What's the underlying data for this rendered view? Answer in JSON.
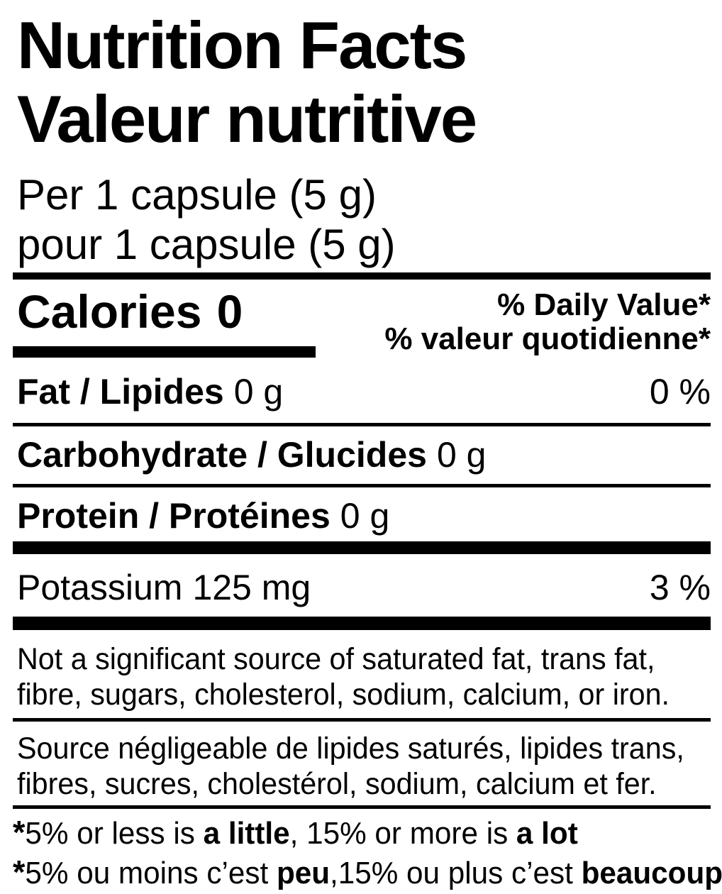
{
  "colors": {
    "text": "#000000",
    "background": "#ffffff",
    "rule": "#000000"
  },
  "label": {
    "title_en": "Nutrition Facts",
    "title_fr": "Valeur nutritive",
    "serving_en": "Per 1 capsule (5 g)",
    "serving_fr": "pour 1 capsule (5 g)",
    "calories": {
      "label": "Calories",
      "value": "0"
    },
    "daily_value_header": {
      "en": "% Daily Value*",
      "fr": "% valeur quotidienne*"
    },
    "nutrients": [
      {
        "name": "Fat / Lipides",
        "amount": "0 g",
        "daily_value": "0 %"
      },
      {
        "name": "Carbohydrate / Glucides",
        "amount": "0 g"
      },
      {
        "name": "Protein / Protéines",
        "amount": "0 g"
      },
      {
        "name": "Potassium",
        "amount": "125 mg",
        "daily_value": "3 %"
      }
    ],
    "not_significant": {
      "en_line1": "Not a significant source of saturated fat, trans fat,",
      "en_line2": "fibre, sugars, cholesterol, sodium, calcium, or iron.",
      "fr_line1": "Source négligeable de lipides saturés, lipides trans,",
      "fr_line2": "fibres, sucres, cholestérol, sodium, calcium et fer."
    },
    "footnotes": {
      "en": {
        "star": "*",
        "t1": "5% or less is ",
        "b1": "a little",
        "t2": ", 15% or more is ",
        "b2": "a lot"
      },
      "fr": {
        "star": "*",
        "t1": "5% ou moins c’est ",
        "b1": "peu",
        "t2": ",15% ou plus c’est ",
        "b2": "beaucoup"
      }
    }
  }
}
